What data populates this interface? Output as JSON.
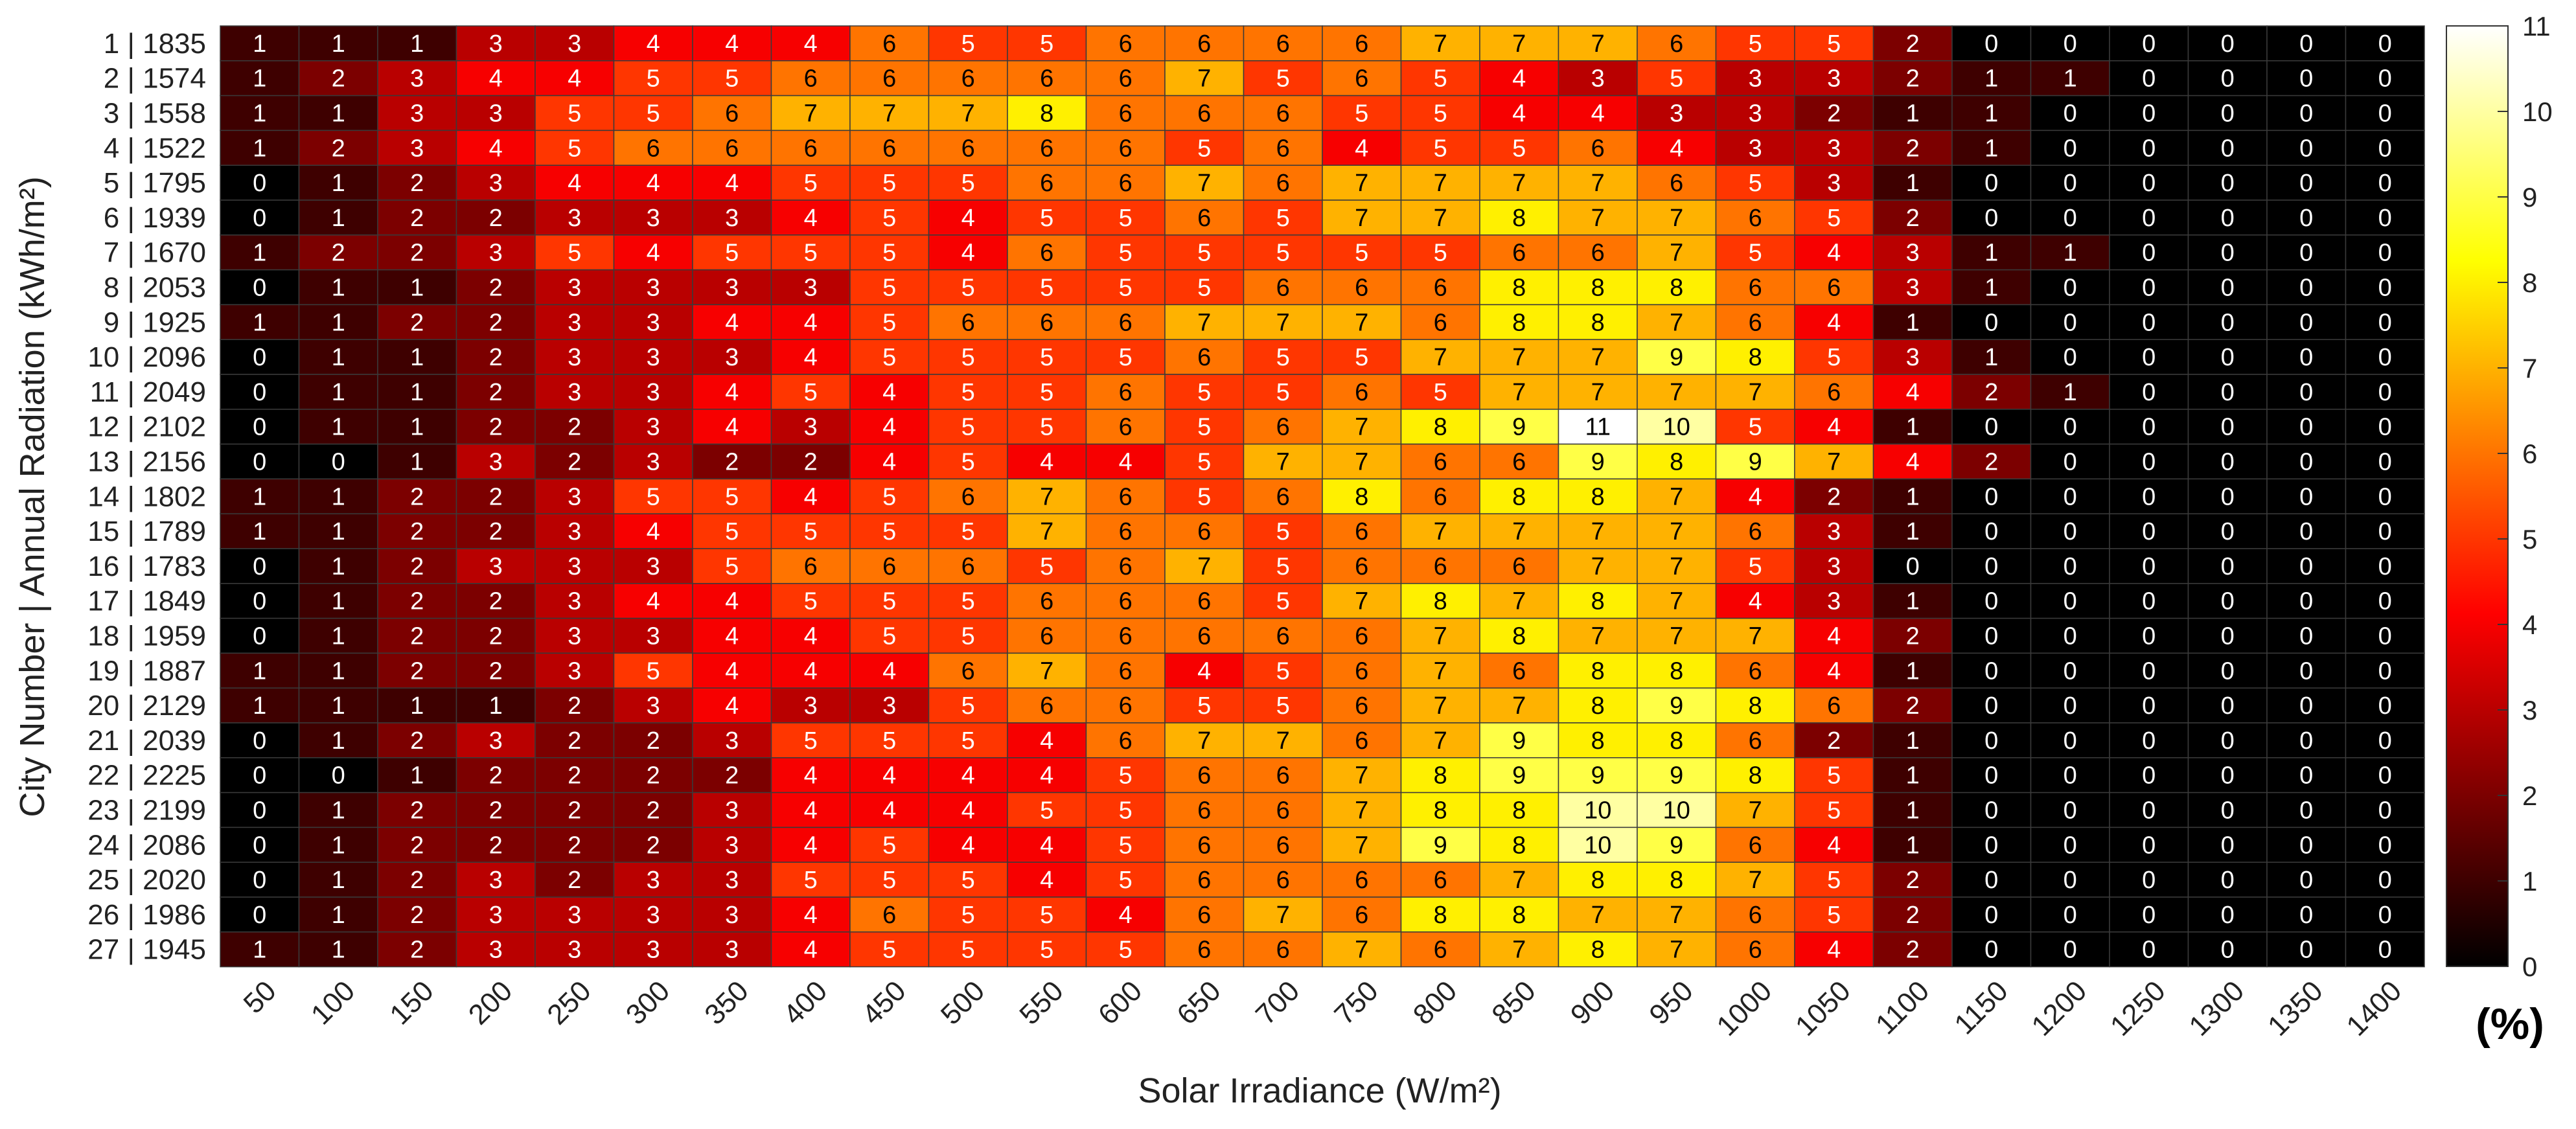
{
  "chart_data": {
    "type": "heatmap",
    "xlabel": "Solar Irradiance (W/m²)",
    "ylabel": "City Number | Annual Radiation (kWh/m²)",
    "x_categories": [
      "50",
      "100",
      "150",
      "200",
      "250",
      "300",
      "350",
      "400",
      "450",
      "500",
      "550",
      "600",
      "650",
      "700",
      "750",
      "800",
      "850",
      "900",
      "950",
      "1000",
      "1050",
      "1100",
      "1150",
      "1200",
      "1250",
      "1300",
      "1350",
      "1400"
    ],
    "y_categories": [
      "1 | 1835",
      "2 | 1574",
      "3 | 1558",
      "4 | 1522",
      "5 | 1795",
      "6 | 1939",
      "7 | 1670",
      "8 | 2053",
      "9 | 1925",
      "10 | 2096",
      "11 | 2049",
      "12 | 2102",
      "13 | 2156",
      "14 | 1802",
      "15 | 1789",
      "16 | 1783",
      "17 | 1849",
      "18 | 1959",
      "19 | 1887",
      "20 | 2129",
      "21 | 2039",
      "22 | 2225",
      "23 | 2199",
      "24 | 2086",
      "25 | 2020",
      "26 | 1986",
      "27 | 1945"
    ],
    "values": [
      [
        1,
        1,
        1,
        3,
        3,
        4,
        4,
        4,
        6,
        5,
        5,
        6,
        6,
        6,
        6,
        7,
        7,
        7,
        6,
        5,
        5,
        2,
        0,
        0,
        0,
        0,
        0,
        0
      ],
      [
        1,
        2,
        3,
        4,
        4,
        5,
        5,
        6,
        6,
        6,
        6,
        6,
        7,
        5,
        6,
        5,
        4,
        3,
        5,
        3,
        3,
        2,
        1,
        1,
        0,
        0,
        0,
        0
      ],
      [
        1,
        1,
        3,
        3,
        5,
        5,
        6,
        7,
        7,
        7,
        8,
        6,
        6,
        6,
        5,
        5,
        4,
        4,
        3,
        3,
        2,
        1,
        1,
        0,
        0,
        0,
        0,
        0
      ],
      [
        1,
        2,
        3,
        4,
        5,
        6,
        6,
        6,
        6,
        6,
        6,
        6,
        5,
        6,
        4,
        5,
        5,
        6,
        4,
        3,
        3,
        2,
        1,
        0,
        0,
        0,
        0,
        0
      ],
      [
        0,
        1,
        2,
        3,
        4,
        4,
        4,
        5,
        5,
        5,
        6,
        6,
        7,
        6,
        7,
        7,
        7,
        7,
        6,
        5,
        3,
        1,
        0,
        0,
        0,
        0,
        0,
        0
      ],
      [
        0,
        1,
        2,
        2,
        3,
        3,
        3,
        4,
        5,
        4,
        5,
        5,
        6,
        5,
        7,
        7,
        8,
        7,
        7,
        6,
        5,
        2,
        0,
        0,
        0,
        0,
        0,
        0
      ],
      [
        1,
        2,
        2,
        3,
        5,
        4,
        5,
        5,
        5,
        4,
        6,
        5,
        5,
        5,
        5,
        5,
        6,
        6,
        7,
        5,
        4,
        3,
        1,
        1,
        0,
        0,
        0,
        0
      ],
      [
        0,
        1,
        1,
        2,
        3,
        3,
        3,
        3,
        5,
        5,
        5,
        5,
        5,
        6,
        6,
        6,
        8,
        8,
        8,
        6,
        6,
        3,
        1,
        0,
        0,
        0,
        0,
        0
      ],
      [
        1,
        1,
        2,
        2,
        3,
        3,
        4,
        4,
        5,
        6,
        6,
        6,
        7,
        7,
        7,
        6,
        8,
        8,
        7,
        6,
        4,
        1,
        0,
        0,
        0,
        0,
        0,
        0
      ],
      [
        0,
        1,
        1,
        2,
        3,
        3,
        3,
        4,
        5,
        5,
        5,
        5,
        6,
        5,
        5,
        7,
        7,
        7,
        9,
        8,
        5,
        3,
        1,
        0,
        0,
        0,
        0,
        0
      ],
      [
        0,
        1,
        1,
        2,
        3,
        3,
        4,
        5,
        4,
        5,
        5,
        6,
        5,
        5,
        6,
        5,
        7,
        7,
        7,
        7,
        6,
        4,
        2,
        1,
        0,
        0,
        0,
        0
      ],
      [
        0,
        1,
        1,
        2,
        2,
        3,
        4,
        3,
        4,
        5,
        5,
        6,
        5,
        6,
        7,
        8,
        9,
        11,
        10,
        5,
        4,
        1,
        0,
        0,
        0,
        0,
        0,
        0
      ],
      [
        0,
        0,
        1,
        3,
        2,
        3,
        2,
        2,
        4,
        5,
        4,
        4,
        5,
        7,
        7,
        6,
        6,
        9,
        8,
        9,
        7,
        4,
        2,
        0,
        0,
        0,
        0,
        0
      ],
      [
        1,
        1,
        2,
        2,
        3,
        5,
        5,
        4,
        5,
        6,
        7,
        6,
        5,
        6,
        8,
        6,
        8,
        8,
        7,
        4,
        2,
        1,
        0,
        0,
        0,
        0,
        0,
        0
      ],
      [
        1,
        1,
        2,
        2,
        3,
        4,
        5,
        5,
        5,
        5,
        7,
        6,
        6,
        5,
        6,
        7,
        7,
        7,
        7,
        6,
        3,
        1,
        0,
        0,
        0,
        0,
        0,
        0
      ],
      [
        0,
        1,
        2,
        3,
        3,
        3,
        5,
        6,
        6,
        6,
        5,
        6,
        7,
        5,
        6,
        6,
        6,
        7,
        7,
        5,
        3,
        0,
        0,
        0,
        0,
        0,
        0,
        0
      ],
      [
        0,
        1,
        2,
        2,
        3,
        4,
        4,
        5,
        5,
        5,
        6,
        6,
        6,
        5,
        7,
        8,
        7,
        8,
        7,
        4,
        3,
        1,
        0,
        0,
        0,
        0,
        0,
        0
      ],
      [
        0,
        1,
        2,
        2,
        3,
        3,
        4,
        4,
        5,
        5,
        6,
        6,
        6,
        6,
        6,
        7,
        8,
        7,
        7,
        7,
        4,
        2,
        0,
        0,
        0,
        0,
        0,
        0
      ],
      [
        1,
        1,
        2,
        2,
        3,
        5,
        4,
        4,
        4,
        6,
        7,
        6,
        4,
        5,
        6,
        7,
        6,
        8,
        8,
        6,
        4,
        1,
        0,
        0,
        0,
        0,
        0,
        0
      ],
      [
        1,
        1,
        1,
        1,
        2,
        3,
        4,
        3,
        3,
        5,
        6,
        6,
        5,
        5,
        6,
        7,
        7,
        8,
        9,
        8,
        6,
        2,
        0,
        0,
        0,
        0,
        0,
        0
      ],
      [
        0,
        1,
        2,
        3,
        2,
        2,
        3,
        5,
        5,
        5,
        4,
        6,
        7,
        7,
        6,
        7,
        9,
        8,
        8,
        6,
        2,
        1,
        0,
        0,
        0,
        0,
        0,
        0
      ],
      [
        0,
        0,
        1,
        2,
        2,
        2,
        2,
        4,
        4,
        4,
        4,
        5,
        6,
        6,
        7,
        8,
        9,
        9,
        9,
        8,
        5,
        1,
        0,
        0,
        0,
        0,
        0,
        0
      ],
      [
        0,
        1,
        2,
        2,
        2,
        2,
        3,
        4,
        4,
        4,
        5,
        5,
        6,
        6,
        7,
        8,
        8,
        10,
        10,
        7,
        5,
        1,
        0,
        0,
        0,
        0,
        0,
        0
      ],
      [
        0,
        1,
        2,
        2,
        2,
        2,
        3,
        4,
        5,
        4,
        4,
        5,
        6,
        6,
        7,
        9,
        8,
        10,
        9,
        6,
        4,
        1,
        0,
        0,
        0,
        0,
        0,
        0
      ],
      [
        0,
        1,
        2,
        3,
        2,
        3,
        3,
        5,
        5,
        5,
        4,
        5,
        6,
        6,
        6,
        6,
        7,
        8,
        8,
        7,
        5,
        2,
        0,
        0,
        0,
        0,
        0,
        0
      ],
      [
        0,
        1,
        2,
        3,
        3,
        3,
        3,
        4,
        6,
        5,
        5,
        4,
        6,
        7,
        6,
        8,
        8,
        7,
        7,
        6,
        5,
        2,
        0,
        0,
        0,
        0,
        0,
        0
      ],
      [
        1,
        1,
        2,
        3,
        3,
        3,
        3,
        4,
        5,
        5,
        5,
        5,
        6,
        6,
        7,
        6,
        7,
        8,
        7,
        6,
        4,
        2,
        0,
        0,
        0,
        0,
        0,
        0
      ]
    ],
    "colorbar": {
      "colormap": "hot",
      "range": [
        0,
        11
      ],
      "ticks": [
        0,
        1,
        2,
        3,
        4,
        5,
        6,
        7,
        8,
        9,
        10,
        11
      ],
      "unit_label": "(%)"
    }
  }
}
